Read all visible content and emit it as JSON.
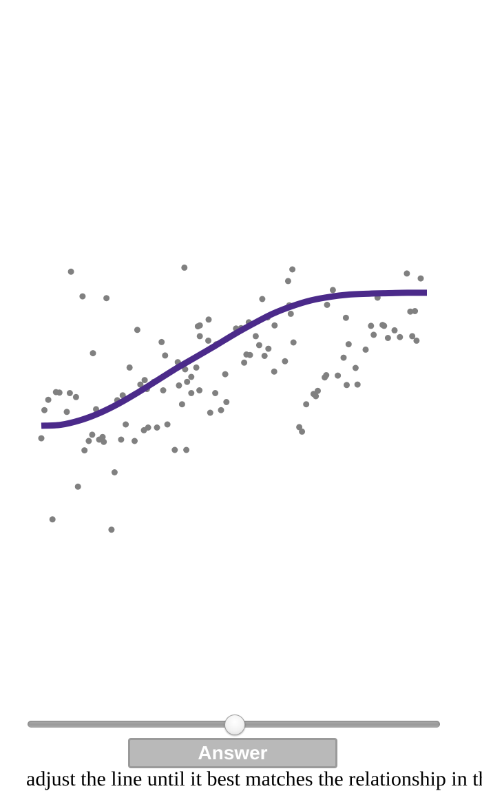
{
  "chart_data": {
    "type": "scatter",
    "title": "",
    "xlabel": "",
    "ylabel": "",
    "grid": false,
    "axes_visible": false,
    "xlim": [
      0,
      1
    ],
    "ylim": [
      0,
      1
    ],
    "point_color": "#808080",
    "curve_color": "#4b2a8a",
    "points": [
      {
        "x": 0.0,
        "y": 0.406
      },
      {
        "x": 0.018,
        "y": 0.492
      },
      {
        "x": 0.029,
        "y": 0.225
      },
      {
        "x": 0.008,
        "y": 0.469
      },
      {
        "x": 0.038,
        "y": 0.509
      },
      {
        "x": 0.047,
        "y": 0.508
      },
      {
        "x": 0.074,
        "y": 0.507
      },
      {
        "x": 0.066,
        "y": 0.465
      },
      {
        "x": 0.077,
        "y": 0.778
      },
      {
        "x": 0.107,
        "y": 0.723
      },
      {
        "x": 0.09,
        "y": 0.498
      },
      {
        "x": 0.095,
        "y": 0.298
      },
      {
        "x": 0.112,
        "y": 0.379
      },
      {
        "x": 0.123,
        "y": 0.4
      },
      {
        "x": 0.132,
        "y": 0.414
      },
      {
        "x": 0.142,
        "y": 0.471
      },
      {
        "x": 0.15,
        "y": 0.403
      },
      {
        "x": 0.134,
        "y": 0.596
      },
      {
        "x": 0.162,
        "y": 0.398
      },
      {
        "x": 0.169,
        "y": 0.719
      },
      {
        "x": 0.159,
        "y": 0.409
      },
      {
        "x": 0.182,
        "y": 0.202
      },
      {
        "x": 0.19,
        "y": 0.33
      },
      {
        "x": 0.197,
        "y": 0.491
      },
      {
        "x": 0.211,
        "y": 0.502
      },
      {
        "x": 0.207,
        "y": 0.403
      },
      {
        "x": 0.219,
        "y": 0.437
      },
      {
        "x": 0.229,
        "y": 0.564
      },
      {
        "x": 0.242,
        "y": 0.4
      },
      {
        "x": 0.257,
        "y": 0.526
      },
      {
        "x": 0.249,
        "y": 0.648
      },
      {
        "x": 0.268,
        "y": 0.536
      },
      {
        "x": 0.274,
        "y": 0.516
      },
      {
        "x": 0.292,
        "y": 0.532
      },
      {
        "x": 0.266,
        "y": 0.424
      },
      {
        "x": 0.277,
        "y": 0.43
      },
      {
        "x": 0.3,
        "y": 0.43
      },
      {
        "x": 0.316,
        "y": 0.513
      },
      {
        "x": 0.312,
        "y": 0.621
      },
      {
        "x": 0.327,
        "y": 0.437
      },
      {
        "x": 0.321,
        "y": 0.591
      },
      {
        "x": 0.346,
        "y": 0.38
      },
      {
        "x": 0.376,
        "y": 0.38
      },
      {
        "x": 0.357,
        "y": 0.524
      },
      {
        "x": 0.365,
        "y": 0.482
      },
      {
        "x": 0.373,
        "y": 0.56
      },
      {
        "x": 0.389,
        "y": 0.543
      },
      {
        "x": 0.389,
        "y": 0.507
      },
      {
        "x": 0.406,
        "y": 0.656
      },
      {
        "x": 0.41,
        "y": 0.513
      },
      {
        "x": 0.434,
        "y": 0.671
      },
      {
        "x": 0.411,
        "y": 0.658
      },
      {
        "x": 0.411,
        "y": 0.634
      },
      {
        "x": 0.371,
        "y": 0.787
      },
      {
        "x": 0.378,
        "y": 0.532
      },
      {
        "x": 0.402,
        "y": 0.564
      },
      {
        "x": 0.354,
        "y": 0.576
      },
      {
        "x": 0.433,
        "y": 0.624
      },
      {
        "x": 0.438,
        "y": 0.463
      },
      {
        "x": 0.451,
        "y": 0.507
      },
      {
        "x": 0.454,
        "y": 0.616
      },
      {
        "x": 0.466,
        "y": 0.469
      },
      {
        "x": 0.48,
        "y": 0.487
      },
      {
        "x": 0.477,
        "y": 0.549
      },
      {
        "x": 0.505,
        "y": 0.651
      },
      {
        "x": 0.526,
        "y": 0.575
      },
      {
        "x": 0.518,
        "y": 0.652
      },
      {
        "x": 0.532,
        "y": 0.593
      },
      {
        "x": 0.538,
        "y": 0.665
      },
      {
        "x": 0.541,
        "y": 0.592
      },
      {
        "x": 0.556,
        "y": 0.634
      },
      {
        "x": 0.565,
        "y": 0.614
      },
      {
        "x": 0.573,
        "y": 0.717
      },
      {
        "x": 0.579,
        "y": 0.59
      },
      {
        "x": 0.589,
        "y": 0.606
      },
      {
        "x": 0.587,
        "y": 0.676
      },
      {
        "x": 0.604,
        "y": 0.555
      },
      {
        "x": 0.605,
        "y": 0.658
      },
      {
        "x": 0.632,
        "y": 0.578
      },
      {
        "x": 0.647,
        "y": 0.684
      },
      {
        "x": 0.64,
        "y": 0.757
      },
      {
        "x": 0.643,
        "y": 0.703
      },
      {
        "x": 0.651,
        "y": 0.783
      },
      {
        "x": 0.654,
        "y": 0.62
      },
      {
        "x": 0.669,
        "y": 0.431
      },
      {
        "x": 0.676,
        "y": 0.421
      },
      {
        "x": 0.687,
        "y": 0.482
      },
      {
        "x": 0.706,
        "y": 0.505
      },
      {
        "x": 0.712,
        "y": 0.5
      },
      {
        "x": 0.717,
        "y": 0.512
      },
      {
        "x": 0.735,
        "y": 0.542
      },
      {
        "x": 0.739,
        "y": 0.547
      },
      {
        "x": 0.741,
        "y": 0.704
      },
      {
        "x": 0.756,
        "y": 0.737
      },
      {
        "x": 0.769,
        "y": 0.546
      },
      {
        "x": 0.784,
        "y": 0.586
      },
      {
        "x": 0.792,
        "y": 0.525
      },
      {
        "x": 0.79,
        "y": 0.675
      },
      {
        "x": 0.797,
        "y": 0.616
      },
      {
        "x": 0.815,
        "y": 0.563
      },
      {
        "x": 0.82,
        "y": 0.526
      },
      {
        "x": 0.841,
        "y": 0.604
      },
      {
        "x": 0.855,
        "y": 0.657
      },
      {
        "x": 0.862,
        "y": 0.637
      },
      {
        "x": 0.872,
        "y": 0.72
      },
      {
        "x": 0.885,
        "y": 0.659
      },
      {
        "x": 0.889,
        "y": 0.657
      },
      {
        "x": 0.899,
        "y": 0.63
      },
      {
        "x": 0.916,
        "y": 0.647
      },
      {
        "x": 0.93,
        "y": 0.632
      },
      {
        "x": 0.948,
        "y": 0.774
      },
      {
        "x": 0.957,
        "y": 0.689
      },
      {
        "x": 0.962,
        "y": 0.634
      },
      {
        "x": 0.973,
        "y": 0.624
      },
      {
        "x": 0.984,
        "y": 0.763
      },
      {
        "x": 0.969,
        "y": 0.69
      }
    ],
    "curve": [
      {
        "x": 0.0,
        "y": 0.434
      },
      {
        "x": 0.05,
        "y": 0.436
      },
      {
        "x": 0.1,
        "y": 0.446
      },
      {
        "x": 0.15,
        "y": 0.462
      },
      {
        "x": 0.2,
        "y": 0.483
      },
      {
        "x": 0.25,
        "y": 0.508
      },
      {
        "x": 0.3,
        "y": 0.535
      },
      {
        "x": 0.35,
        "y": 0.562
      },
      {
        "x": 0.4,
        "y": 0.587
      },
      {
        "x": 0.45,
        "y": 0.612
      },
      {
        "x": 0.5,
        "y": 0.638
      },
      {
        "x": 0.55,
        "y": 0.662
      },
      {
        "x": 0.6,
        "y": 0.684
      },
      {
        "x": 0.65,
        "y": 0.701
      },
      {
        "x": 0.7,
        "y": 0.714
      },
      {
        "x": 0.75,
        "y": 0.722
      },
      {
        "x": 0.8,
        "y": 0.727
      },
      {
        "x": 0.85,
        "y": 0.729
      },
      {
        "x": 0.9,
        "y": 0.73
      },
      {
        "x": 0.95,
        "y": 0.731
      },
      {
        "x": 1.0,
        "y": 0.731
      }
    ]
  },
  "controls": {
    "slider_value": 0.5,
    "slider_min": 0,
    "slider_max": 1,
    "answer_label": "Answer"
  },
  "footer_text": "adjust the line until it best matches the relationship in this scatter plot"
}
